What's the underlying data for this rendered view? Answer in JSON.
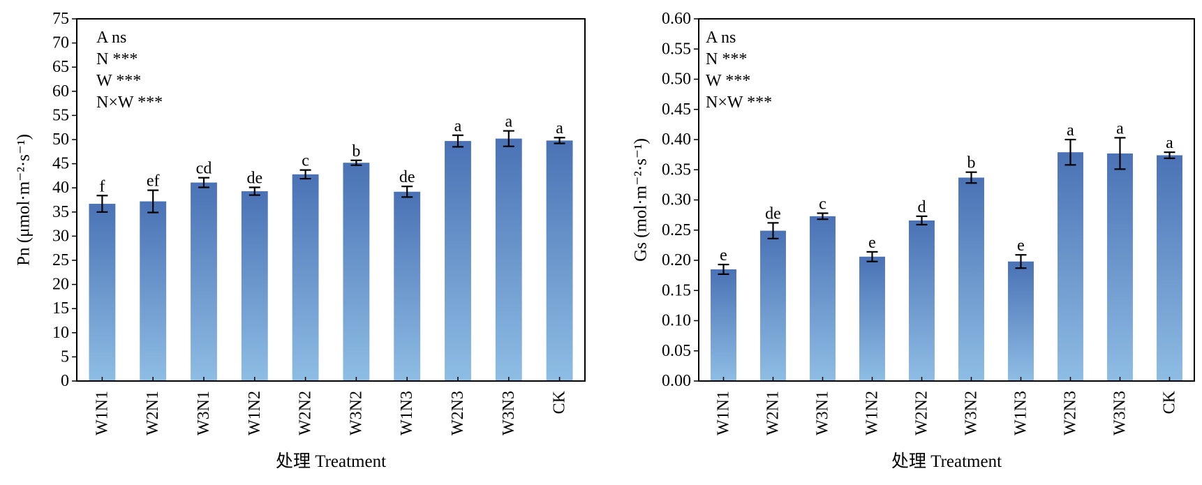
{
  "colors": {
    "bar_top": "#4a72b5",
    "bar_bottom": "#8ebde4",
    "axis": "#000000",
    "error_bar": "#000000"
  },
  "chart_data": [
    {
      "type": "bar",
      "xlabel": "处理 Treatment",
      "ylabel": "Pn (μmol·m⁻²·s⁻¹)",
      "ylim": [
        0,
        75
      ],
      "ytick_step": 5,
      "ytick_decimals": 0,
      "grid": false,
      "legend": "none",
      "stats": [
        "A ns",
        "N ***",
        "W ***",
        "N×W ***"
      ],
      "categories": [
        "W1N1",
        "W2N1",
        "W3N1",
        "W1N2",
        "W2N2",
        "W3N2",
        "W1N3",
        "W2N3",
        "W3N3",
        "CK"
      ],
      "values": [
        36.7,
        37.2,
        41.1,
        39.3,
        42.8,
        45.2,
        39.2,
        49.7,
        50.2,
        49.8
      ],
      "errors": [
        1.7,
        2.3,
        1.0,
        0.8,
        0.9,
        0.5,
        1.1,
        1.2,
        1.6,
        0.6
      ],
      "letters": [
        "f",
        "ef",
        "cd",
        "de",
        "c",
        "b",
        "de",
        "a",
        "a",
        "a"
      ]
    },
    {
      "type": "bar",
      "xlabel": "处理 Treatment",
      "ylabel": "Gs (mol·m⁻²·s⁻¹)",
      "ylim": [
        0,
        0.6
      ],
      "ytick_step": 0.05,
      "ytick_decimals": 2,
      "grid": false,
      "legend": "none",
      "stats": [
        "A ns",
        "N ***",
        "W ***",
        "N×W ***"
      ],
      "categories": [
        "W1N1",
        "W2N1",
        "W3N1",
        "W1N2",
        "W2N2",
        "W3N2",
        "W1N3",
        "W2N3",
        "W3N3",
        "CK"
      ],
      "values": [
        0.185,
        0.249,
        0.273,
        0.206,
        0.266,
        0.337,
        0.198,
        0.379,
        0.377,
        0.374
      ],
      "errors": [
        0.008,
        0.013,
        0.005,
        0.008,
        0.007,
        0.009,
        0.011,
        0.021,
        0.026,
        0.005
      ],
      "letters": [
        "e",
        "de",
        "c",
        "e",
        "d",
        "b",
        "e",
        "a",
        "a",
        "a"
      ]
    }
  ]
}
